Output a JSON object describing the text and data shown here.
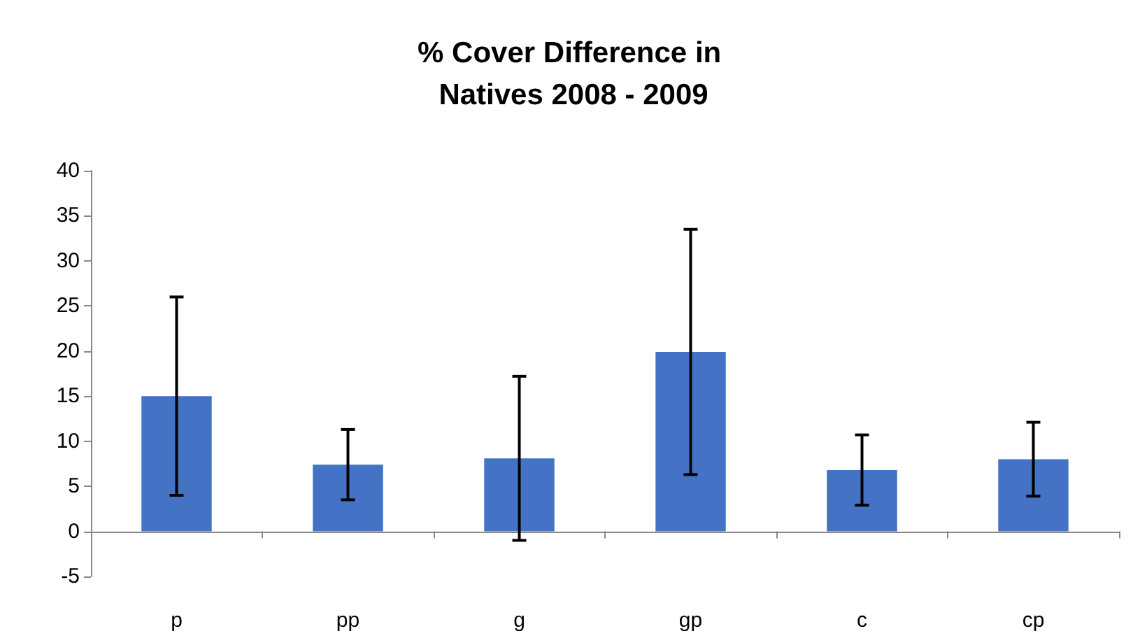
{
  "chart_data": {
    "type": "bar",
    "title": "% Cover Difference in Natives 2008 - 2009",
    "categories": [
      "p",
      "pp",
      "g",
      "gp",
      "c",
      "cp"
    ],
    "values": [
      15,
      7.4,
      8.1,
      19.9,
      6.8,
      8.0
    ],
    "errors": [
      11,
      3.9,
      9.1,
      13.6,
      3.9,
      4.1
    ],
    "color": "#4472c4",
    "ylim": [
      -5,
      40
    ],
    "yticks": [
      -5,
      0,
      5,
      10,
      15,
      20,
      25,
      30,
      35,
      40
    ]
  }
}
